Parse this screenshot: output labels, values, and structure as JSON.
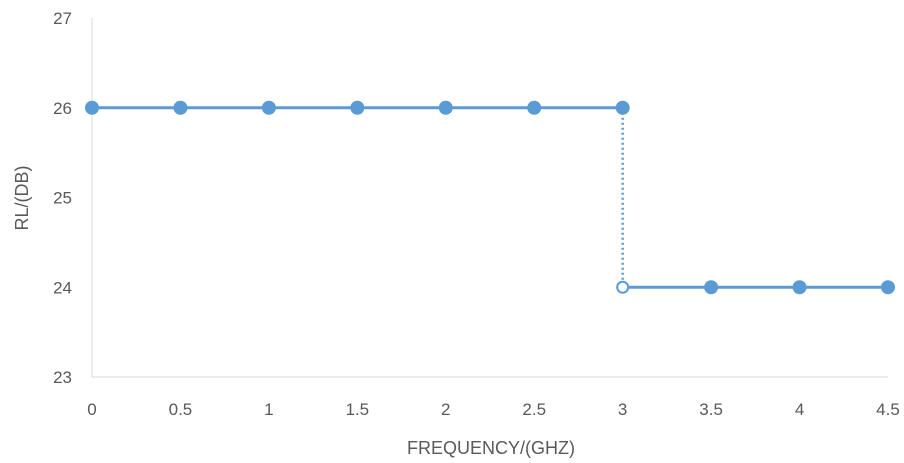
{
  "chart_data": {
    "type": "line",
    "title": "",
    "xlabel": "FREQUENCY/(GHZ)",
    "ylabel": "RL/(DB)",
    "xlim": [
      0,
      4.5
    ],
    "ylim": [
      23,
      27
    ],
    "x_ticks": [
      "0",
      "0.5",
      "1",
      "1.5",
      "2",
      "2.5",
      "3",
      "3.5",
      "4",
      "4.5"
    ],
    "y_ticks": [
      "23",
      "24",
      "25",
      "26",
      "27"
    ],
    "grid": false,
    "legend": "none",
    "series_color": "#5b9bd5",
    "segments": [
      {
        "x": [
          0,
          0.5,
          1,
          1.5,
          2,
          2.5,
          3
        ],
        "y": [
          26,
          26,
          26,
          26,
          26,
          26,
          26
        ]
      },
      {
        "x": [
          3,
          3.5,
          4,
          4.5
        ],
        "y": [
          24,
          24,
          24,
          24
        ]
      }
    ],
    "step": {
      "x": 3,
      "from": 26,
      "to": 24,
      "style": "dotted"
    },
    "open_points": [
      {
        "x": 3,
        "y": 24
      }
    ]
  }
}
